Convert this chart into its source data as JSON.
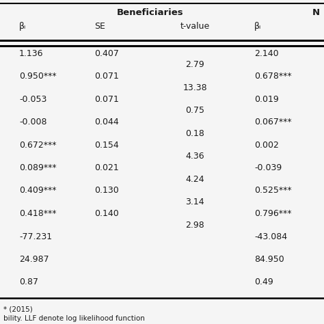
{
  "title": "Beneficiaries",
  "title2": "N",
  "col_headers": [
    "βᵢ",
    "SE",
    "t-value",
    "βᵢ"
  ],
  "rows_col1": [
    "1.136",
    "0.950***",
    "-0.053",
    "-0.008",
    "0.672***",
    "0.089***",
    "0.409***",
    "0.418***",
    "-77.231",
    "24.987",
    "0.87"
  ],
  "rows_col2": [
    "0.407",
    "0.071",
    "0.071",
    "0.044",
    "0.154",
    "0.021",
    "0.130",
    "0.140",
    "",
    "",
    ""
  ],
  "rows_tval": [
    "2.79",
    "13.38",
    "0.75",
    "0.18",
    "4.36",
    "4.24",
    "3.14",
    "2.98"
  ],
  "rows_col4": [
    "2.140",
    "0.678***",
    "0.019",
    "0.067***",
    "0.002",
    "-0.039",
    "0.525***",
    "0.796***",
    "-43.084",
    "84.950",
    "0.49"
  ],
  "footnote1": "* (2015)",
  "footnote2": "bility. LLF denote log likelihood function",
  "bg_color": "#f5f5f5",
  "text_color": "#1a1a1a",
  "title_fontsize": 9.5,
  "header_fontsize": 9,
  "data_fontsize": 9,
  "footnote_fontsize": 7.5
}
